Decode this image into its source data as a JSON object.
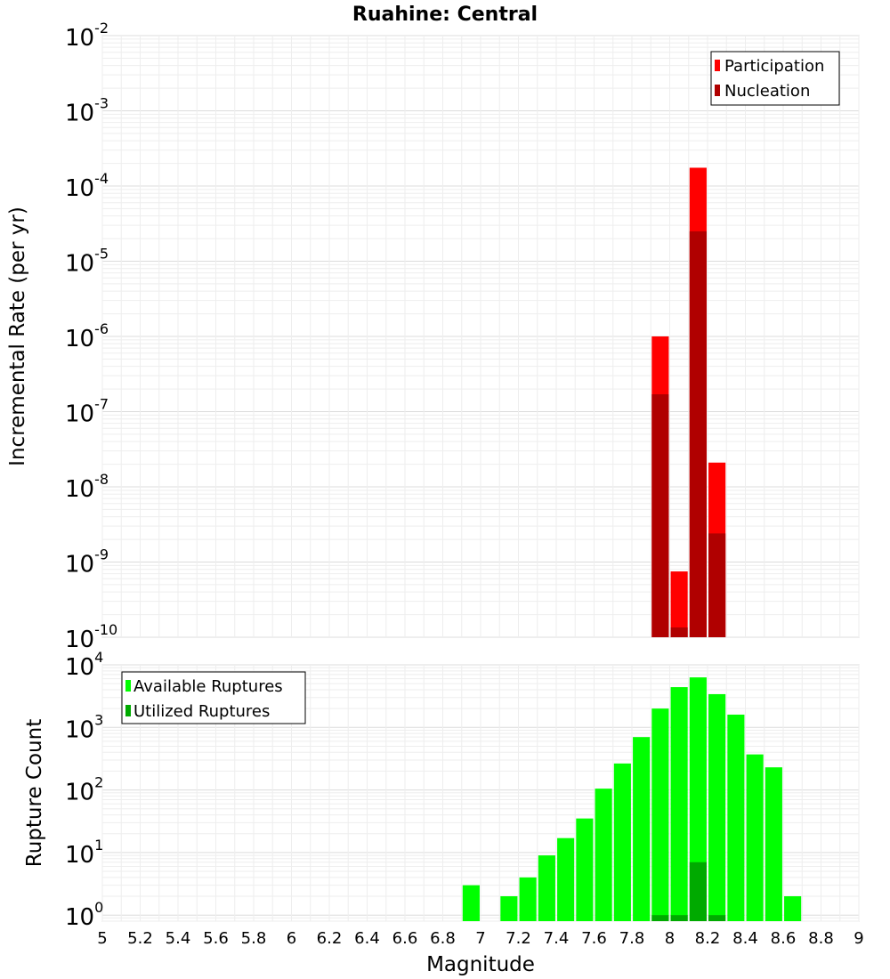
{
  "chart_data": [
    {
      "type": "bar",
      "title": "Ruahine: Central",
      "ylabel": "Incremental Rate (per yr)",
      "xlabel": "",
      "y_scale": "log",
      "ylim": [
        1e-10,
        0.01
      ],
      "xlim": [
        5,
        9
      ],
      "y_tick_labels": [
        {
          "base": "10",
          "exp": "-10",
          "value": 1e-10
        },
        {
          "base": "10",
          "exp": "-9",
          "value": 1e-09
        },
        {
          "base": "10",
          "exp": "-8",
          "value": 1e-08
        },
        {
          "base": "10",
          "exp": "-7",
          "value": 1e-07
        },
        {
          "base": "10",
          "exp": "-6",
          "value": 1e-06
        },
        {
          "base": "10",
          "exp": "-5",
          "value": 1e-05
        },
        {
          "base": "10",
          "exp": "-4",
          "value": 0.0001
        },
        {
          "base": "10",
          "exp": "-3",
          "value": 0.001
        },
        {
          "base": "10",
          "exp": "-2",
          "value": 0.01
        }
      ],
      "legend": {
        "placement": "top-right",
        "entries": [
          {
            "label": "Participation",
            "color": "#ff0000"
          },
          {
            "label": "Nucleation",
            "color": "#b00000"
          }
        ]
      },
      "series": [
        {
          "name": "Participation",
          "color": "#ff0000",
          "points": [
            [
              7.95,
              1e-06
            ],
            [
              8.05,
              7.5e-10
            ],
            [
              8.15,
              0.000175
            ],
            [
              8.25,
              2.1e-08
            ]
          ]
        },
        {
          "name": "Nucleation",
          "color": "#b00000",
          "points": [
            [
              7.95,
              1.7e-07
            ],
            [
              8.05,
              1.35e-10
            ],
            [
              8.15,
              2.5e-05
            ],
            [
              8.25,
              2.4e-09
            ]
          ]
        }
      ]
    },
    {
      "type": "bar",
      "title": "",
      "ylabel": "Rupture Count",
      "xlabel": "Magnitude",
      "y_scale": "log",
      "ylim": [
        0.8,
        10000
      ],
      "xlim": [
        5,
        9
      ],
      "x_ticks": [
        "5",
        "5.2",
        "5.4",
        "5.6",
        "5.8",
        "6",
        "6.2",
        "6.4",
        "6.6",
        "6.8",
        "7",
        "7.2",
        "7.4",
        "7.6",
        "7.8",
        "8",
        "8.2",
        "8.4",
        "8.6",
        "8.8",
        "9"
      ],
      "y_tick_labels": [
        {
          "base": "10",
          "exp": "0",
          "value": 1
        },
        {
          "base": "10",
          "exp": "1",
          "value": 10
        },
        {
          "base": "10",
          "exp": "2",
          "value": 100
        },
        {
          "base": "10",
          "exp": "3",
          "value": 1000
        },
        {
          "base": "10",
          "exp": "4",
          "value": 10000
        }
      ],
      "legend": {
        "placement": "top-left",
        "entries": [
          {
            "label": "Available Ruptures",
            "color": "#00ff00"
          },
          {
            "label": "Utilized Ruptures",
            "color": "#00aa00"
          }
        ]
      },
      "series": [
        {
          "name": "Available Ruptures",
          "color": "#00ff00",
          "points": [
            [
              6.95,
              3
            ],
            [
              7.15,
              2
            ],
            [
              7.25,
              4
            ],
            [
              7.35,
              9
            ],
            [
              7.45,
              17
            ],
            [
              7.55,
              35
            ],
            [
              7.65,
              105
            ],
            [
              7.75,
              265
            ],
            [
              7.85,
              700
            ],
            [
              7.95,
              2000
            ],
            [
              8.05,
              4400
            ],
            [
              8.15,
              6300
            ],
            [
              8.25,
              3400
            ],
            [
              8.35,
              1600
            ],
            [
              8.45,
              370
            ],
            [
              8.55,
              230
            ],
            [
              8.65,
              2
            ]
          ]
        },
        {
          "name": "Utilized Ruptures",
          "color": "#00aa00",
          "points": [
            [
              7.95,
              1
            ],
            [
              8.05,
              1
            ],
            [
              8.15,
              7
            ],
            [
              8.25,
              1
            ]
          ]
        }
      ]
    }
  ]
}
